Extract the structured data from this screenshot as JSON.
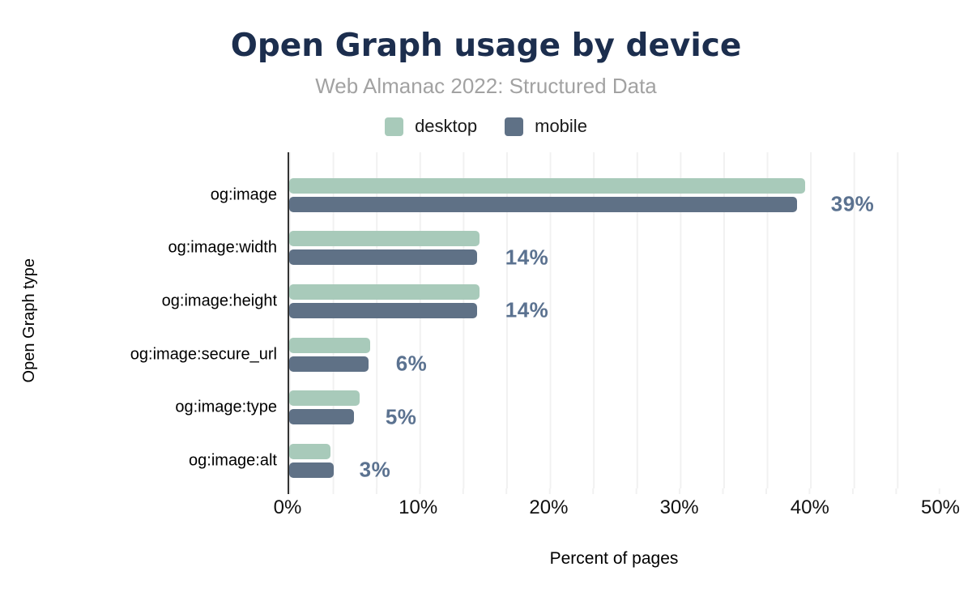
{
  "header": {
    "title": "Open Graph usage by device",
    "subtitle": "Web Almanac 2022: Structured Data",
    "title_color": "#1c2e4e",
    "subtitle_color": "#a2a2a2"
  },
  "legend": {
    "items": [
      {
        "label": "desktop",
        "color": "#a8caba"
      },
      {
        "label": "mobile",
        "color": "#5f7186"
      }
    ]
  },
  "chart_data": {
    "type": "bar",
    "orientation": "horizontal",
    "title": "Open Graph usage by device",
    "subtitle": "Web Almanac 2022: Structured Data",
    "xlabel": "Percent of pages",
    "ylabel": "Open Graph type",
    "categories": [
      "og:image",
      "og:image:width",
      "og:image:height",
      "og:image:secure_url",
      "og:image:type",
      "og:image:alt"
    ],
    "series": [
      {
        "name": "desktop",
        "color": "#a8caba",
        "values": [
          39.6,
          14.6,
          14.6,
          6.2,
          5.4,
          3.2
        ]
      },
      {
        "name": "mobile",
        "color": "#5f7186",
        "values": [
          39.0,
          14.4,
          14.4,
          6.1,
          5.0,
          3.4
        ]
      }
    ],
    "value_labels": [
      "39%",
      "14%",
      "14%",
      "6%",
      "5%",
      "3%"
    ],
    "value_label_color": "#5b7290",
    "x_ticks": [
      "0%",
      "10%",
      "20%",
      "30%",
      "40%",
      "50%"
    ],
    "x_tick_values": [
      0,
      10,
      20,
      30,
      40,
      50
    ],
    "xlim": [
      0,
      50
    ],
    "grid": "vertical, light gray, every 3.333%",
    "legend_position": "top-center",
    "axis_line_color": "#333333",
    "gridline_color": "#f1f1f1"
  }
}
